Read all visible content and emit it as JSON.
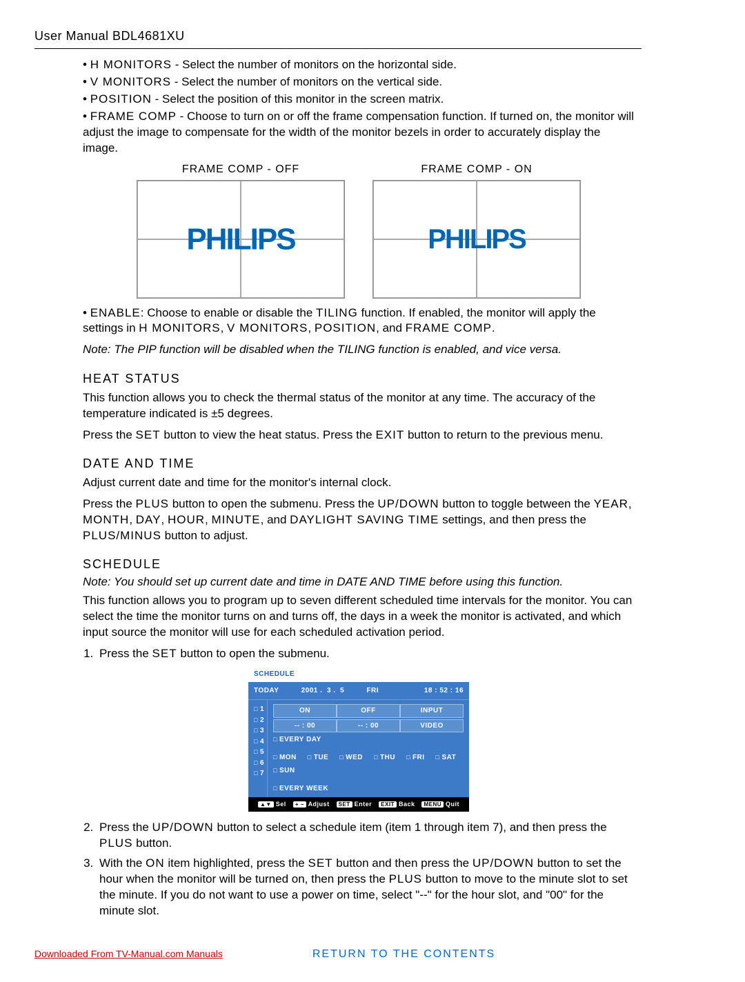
{
  "header": "User Manual BDL4681XU",
  "bullets": {
    "hmon": {
      "label": "H MONITORS",
      "text": " - Select the number of monitors on the horizontal side."
    },
    "vmon": {
      "label": "V MONITORS",
      "text": " - Select the number of monitors on the vertical side."
    },
    "pos": {
      "label": "POSITION",
      "text": " - Select the position of this monitor in the screen matrix."
    },
    "frame": {
      "label": "FRAME COMP",
      "text": " - Choose to turn on or off the frame compensation function. If turned on, the monitor will adjust the image to compensate for the width of the monitor bezels in order to accurately display the image."
    }
  },
  "diagram": {
    "off_label": "FRAME COMP - OFF",
    "on_label": "FRAME COMP - ON",
    "logo": "PHILIPS",
    "border_color": "#aaaaaa",
    "logo_color": "#0066b3"
  },
  "enable": {
    "label": "ENABLE",
    "text1": ": Choose to enable or disable the ",
    "tiling": "TILING",
    "text2": " function. If enabled, the monitor will apply the settings in ",
    "hmon": "H MONITORS",
    "c1": ", ",
    "vmon": "V MONITORS",
    "c2": ", ",
    "pos": "POSITION",
    "c3": ", and ",
    "frame": "FRAME COMP",
    "dot": "."
  },
  "note_pip": "Note: The PIP function will be disabled when the TILING function is enabled, and vice versa.",
  "heat": {
    "title": "HEAT STATUS",
    "p1": "This function allows you to check the thermal status of the monitor at any time. The accuracy of the temperature indicated is ±5 degrees.",
    "p2a": "Press the ",
    "set": "SET",
    "p2b": " button to view the heat status. Press the ",
    "exit": "EXIT",
    "p2c": " button to return to the previous menu."
  },
  "datetime": {
    "title": "DATE AND TIME",
    "p1": "Adjust current date and time for the monitor's internal clock.",
    "p2a": "Press the ",
    "plus": "PLUS",
    "p2b": " button to open the submenu. Press the ",
    "updown": "UP/DOWN",
    "p2c": " button to toggle between the ",
    "year": "YEAR",
    "c1": ", ",
    "month": "MONTH",
    "c2": ", ",
    "day": "DAY",
    "c3": ", ",
    "hour": "HOUR",
    "c4": ", ",
    "minute": "MINUTE",
    "c5": ", and ",
    "dst": "DAYLIGHT SAVING TIME",
    "p2d": " settings, and then press the ",
    "plusminus": "PLUS/MINUS",
    "p2e": " button to adjust."
  },
  "schedule": {
    "title": "SCHEDULE",
    "note": "Note: You should set up current date and time in DATE AND TIME before using this function.",
    "p1": "This function allows you to program up to seven different scheduled time intervals for the monitor. You can select the time the monitor turns on and turns off, the days in a week the monitor is activated, and which input source the monitor will use for each scheduled activation period.",
    "step1a": "Press the ",
    "set": "SET",
    "step1b": " button to open the submenu.",
    "step2a": "Press the ",
    "updown": "UP/DOWN",
    "step2b": " button to select a schedule item (item 1 through item 7), and then press the ",
    "plus": "PLUS",
    "step2c": " button.",
    "step3a": "With the ",
    "on": "ON",
    "step3b": " item highlighted, press the ",
    "step3c": " button and then press the ",
    "step3d": " button to set the hour when the monitor will be turned on, then press the ",
    "step3e": " button to move to the minute slot to set the minute. If you do not want to use a power on time, select \"--\" for the hour slot, and \"00\" for the minute slot."
  },
  "osd": {
    "title": "SCHEDULE",
    "today_label": "TODAY",
    "date": "2001 .  3 .  5",
    "day": "FRI",
    "time": "18 : 52 : 16",
    "items": [
      "1",
      "2",
      "3",
      "4",
      "5",
      "6",
      "7"
    ],
    "on": "ON",
    "off": "OFF",
    "input": "INPUT",
    "on_time": "-- : 00",
    "off_time": "-- : 00",
    "input_val": "VIDEO",
    "everyday": "EVERY DAY",
    "days": [
      "MON",
      "TUE",
      "WED",
      "THU",
      "FRI",
      "SAT",
      "SUN"
    ],
    "everyweek": "EVERY WEEK",
    "footer": {
      "sel": "Sel",
      "adjust": "Adjust",
      "set": "SET",
      "enter": "Enter",
      "exit": "EXIT",
      "back": "Back",
      "menu": "MENU",
      "quit": "Quit"
    },
    "bg_color": "#3d7bc8",
    "title_color": "#1a5fb4"
  },
  "footer": {
    "download": "Downloaded From TV-Manual.com Manuals",
    "return": "RETURN TO THE CONTENTS"
  }
}
